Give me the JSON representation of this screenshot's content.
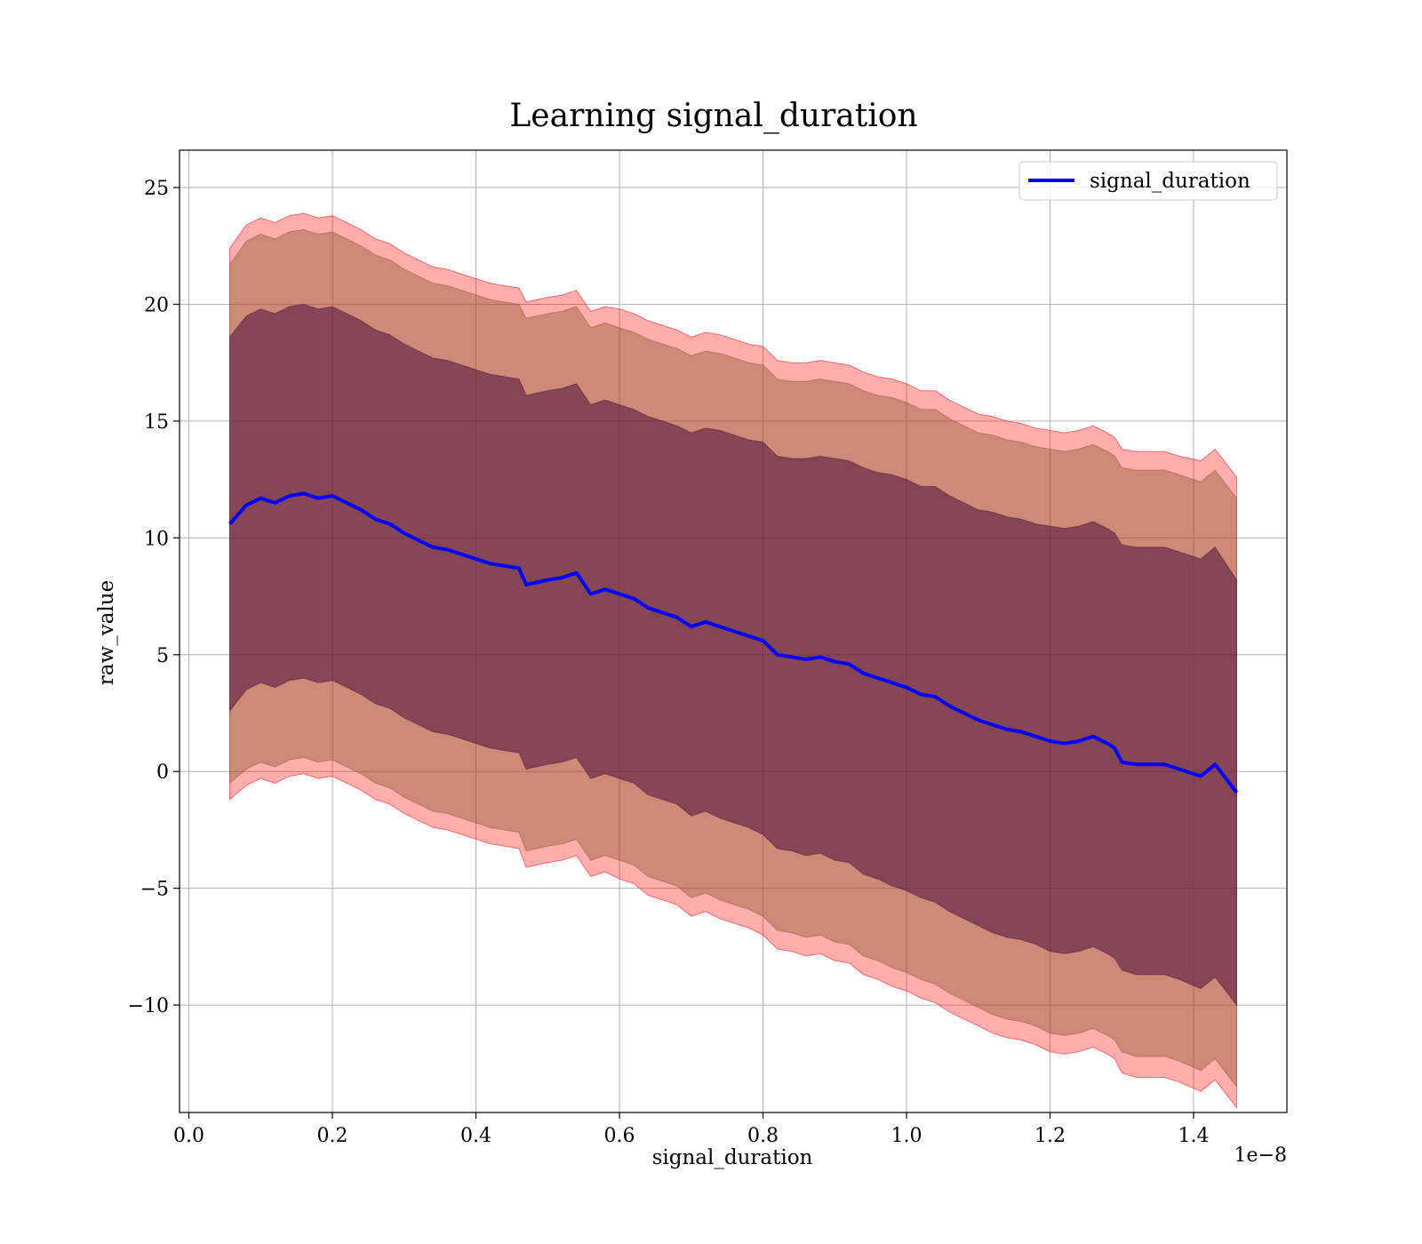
{
  "chart_data": {
    "type": "line",
    "title": "Learning signal_duration",
    "xlabel": "signal_duration",
    "ylabel": "raw_value",
    "x_offset_label": "1e−8",
    "xlim": [
      -0.013,
      1.53
    ],
    "ylim": [
      -14.6,
      26.6
    ],
    "xticks": [
      0.0,
      0.2,
      0.4,
      0.6,
      0.8,
      1.0,
      1.2,
      1.4
    ],
    "xtick_labels": [
      "0.0",
      "0.2",
      "0.4",
      "0.6",
      "0.8",
      "1.0",
      "1.2",
      "1.4"
    ],
    "yticks": [
      25,
      20,
      15,
      10,
      5,
      0,
      -5,
      -10
    ],
    "ytick_labels": [
      "25",
      "20",
      "15",
      "10",
      "5",
      "0",
      "−5",
      "−10"
    ],
    "grid": true,
    "legend_position": "upper right",
    "colors": {
      "line": "#0000ff",
      "outer_band": "#ff0000",
      "middle_band": "#8b5a2b",
      "inner_band": "#4b0f3a"
    },
    "series": [
      {
        "name": "signal_duration",
        "x": [
          0.057,
          0.08,
          0.1,
          0.12,
          0.14,
          0.16,
          0.18,
          0.2,
          0.22,
          0.24,
          0.26,
          0.28,
          0.3,
          0.32,
          0.34,
          0.36,
          0.38,
          0.4,
          0.42,
          0.44,
          0.46,
          0.47,
          0.5,
          0.52,
          0.54,
          0.56,
          0.58,
          0.6,
          0.62,
          0.64,
          0.66,
          0.68,
          0.7,
          0.72,
          0.74,
          0.76,
          0.78,
          0.8,
          0.82,
          0.84,
          0.86,
          0.88,
          0.9,
          0.92,
          0.94,
          0.96,
          0.98,
          1.0,
          1.02,
          1.04,
          1.06,
          1.08,
          1.1,
          1.12,
          1.14,
          1.16,
          1.18,
          1.2,
          1.22,
          1.24,
          1.26,
          1.28,
          1.29,
          1.3,
          1.32,
          1.34,
          1.36,
          1.38,
          1.41,
          1.43,
          1.46
        ],
        "y": [
          10.6,
          11.4,
          11.7,
          11.5,
          11.8,
          11.9,
          11.7,
          11.8,
          11.5,
          11.2,
          10.8,
          10.6,
          10.2,
          9.9,
          9.6,
          9.5,
          9.3,
          9.1,
          8.9,
          8.8,
          8.7,
          8.0,
          8.2,
          8.3,
          8.5,
          7.6,
          7.8,
          7.6,
          7.4,
          7.0,
          6.8,
          6.6,
          6.2,
          6.4,
          6.2,
          6.0,
          5.8,
          5.6,
          5.0,
          4.9,
          4.8,
          4.9,
          4.7,
          4.6,
          4.2,
          4.0,
          3.8,
          3.6,
          3.3,
          3.2,
          2.8,
          2.5,
          2.2,
          2.0,
          1.8,
          1.7,
          1.5,
          1.3,
          1.2,
          1.3,
          1.5,
          1.2,
          1.0,
          0.4,
          0.3,
          0.3,
          0.3,
          0.1,
          -0.2,
          0.3,
          -0.9
        ]
      }
    ],
    "bands": [
      {
        "lower": [
          -1.2,
          -0.6,
          -0.3,
          -0.5,
          -0.2,
          -0.1,
          -0.3,
          -0.2,
          -0.5,
          -0.8,
          -1.2,
          -1.4,
          -1.8,
          -2.1,
          -2.4,
          -2.5,
          -2.7,
          -2.9,
          -3.1,
          -3.2,
          -3.3,
          -4.1,
          -3.9,
          -3.8,
          -3.6,
          -4.5,
          -4.3,
          -4.6,
          -4.8,
          -5.3,
          -5.5,
          -5.7,
          -6.2,
          -6.0,
          -6.3,
          -6.5,
          -6.7,
          -7.0,
          -7.6,
          -7.7,
          -7.9,
          -7.8,
          -8.1,
          -8.2,
          -8.7,
          -8.9,
          -9.2,
          -9.4,
          -9.7,
          -9.9,
          -10.3,
          -10.6,
          -10.9,
          -11.2,
          -11.4,
          -11.5,
          -11.7,
          -12.0,
          -12.1,
          -12.0,
          -11.8,
          -12.1,
          -12.3,
          -12.9,
          -13.1,
          -13.1,
          -13.1,
          -13.3,
          -13.7,
          -13.2,
          -14.4
        ],
        "upper": [
          22.4,
          23.4,
          23.7,
          23.5,
          23.8,
          23.9,
          23.7,
          23.8,
          23.5,
          23.2,
          22.8,
          22.6,
          22.2,
          21.9,
          21.6,
          21.5,
          21.3,
          21.1,
          20.9,
          20.8,
          20.7,
          20.1,
          20.3,
          20.4,
          20.6,
          19.7,
          19.9,
          19.8,
          19.6,
          19.3,
          19.1,
          18.9,
          18.6,
          18.8,
          18.7,
          18.5,
          18.3,
          18.2,
          17.6,
          17.5,
          17.5,
          17.6,
          17.5,
          17.4,
          17.1,
          16.9,
          16.8,
          16.6,
          16.3,
          16.3,
          15.9,
          15.6,
          15.3,
          15.2,
          15.0,
          14.9,
          14.7,
          14.6,
          14.5,
          14.6,
          14.8,
          14.5,
          14.3,
          13.8,
          13.7,
          13.7,
          13.7,
          13.5,
          13.3,
          13.8,
          12.6
        ]
      },
      {
        "lower": [
          -0.5,
          0.1,
          0.4,
          0.2,
          0.5,
          0.6,
          0.4,
          0.5,
          0.2,
          -0.1,
          -0.5,
          -0.7,
          -1.1,
          -1.4,
          -1.7,
          -1.8,
          -2.0,
          -2.2,
          -2.4,
          -2.5,
          -2.6,
          -3.4,
          -3.2,
          -3.1,
          -2.9,
          -3.8,
          -3.6,
          -3.8,
          -4.0,
          -4.5,
          -4.7,
          -4.9,
          -5.4,
          -5.2,
          -5.5,
          -5.7,
          -5.9,
          -6.2,
          -6.8,
          -6.9,
          -7.1,
          -7.0,
          -7.3,
          -7.4,
          -7.9,
          -8.1,
          -8.4,
          -8.6,
          -8.9,
          -9.1,
          -9.5,
          -9.8,
          -10.1,
          -10.4,
          -10.6,
          -10.7,
          -10.9,
          -11.2,
          -11.3,
          -11.2,
          -11.0,
          -11.3,
          -11.5,
          -12.0,
          -12.2,
          -12.2,
          -12.2,
          -12.4,
          -12.8,
          -12.3,
          -13.5
        ],
        "upper": [
          21.7,
          22.7,
          23.0,
          22.8,
          23.1,
          23.2,
          23.0,
          23.1,
          22.8,
          22.5,
          22.1,
          21.9,
          21.5,
          21.2,
          20.9,
          20.8,
          20.6,
          20.4,
          20.2,
          20.1,
          20.0,
          19.4,
          19.6,
          19.7,
          19.9,
          19.0,
          19.2,
          19.0,
          18.8,
          18.5,
          18.3,
          18.1,
          17.8,
          18.0,
          17.9,
          17.7,
          17.5,
          17.4,
          16.8,
          16.7,
          16.7,
          16.8,
          16.7,
          16.6,
          16.3,
          16.1,
          16.0,
          15.8,
          15.5,
          15.5,
          15.1,
          14.8,
          14.5,
          14.4,
          14.2,
          14.1,
          13.9,
          13.8,
          13.7,
          13.8,
          14.0,
          13.7,
          13.5,
          13.0,
          12.9,
          12.9,
          12.9,
          12.7,
          12.4,
          12.9,
          11.7
        ]
      },
      {
        "lower": [
          2.6,
          3.5,
          3.8,
          3.6,
          3.9,
          4.0,
          3.8,
          3.9,
          3.6,
          3.3,
          2.9,
          2.7,
          2.3,
          2.0,
          1.7,
          1.6,
          1.4,
          1.2,
          1.0,
          0.9,
          0.8,
          0.1,
          0.3,
          0.4,
          0.6,
          -0.3,
          -0.1,
          -0.3,
          -0.5,
          -1.0,
          -1.2,
          -1.4,
          -1.9,
          -1.7,
          -2.0,
          -2.2,
          -2.4,
          -2.7,
          -3.3,
          -3.4,
          -3.6,
          -3.5,
          -3.8,
          -3.9,
          -4.4,
          -4.6,
          -4.9,
          -5.1,
          -5.4,
          -5.6,
          -6.0,
          -6.3,
          -6.6,
          -6.9,
          -7.1,
          -7.2,
          -7.4,
          -7.7,
          -7.8,
          -7.7,
          -7.5,
          -7.8,
          -8.0,
          -8.5,
          -8.7,
          -8.7,
          -8.7,
          -8.9,
          -9.3,
          -8.8,
          -10.0
        ],
        "upper": [
          18.6,
          19.5,
          19.8,
          19.6,
          19.9,
          20.0,
          19.8,
          19.9,
          19.6,
          19.3,
          18.9,
          18.7,
          18.3,
          18.0,
          17.7,
          17.6,
          17.4,
          17.2,
          17.0,
          16.9,
          16.8,
          16.1,
          16.3,
          16.4,
          16.6,
          15.7,
          15.9,
          15.7,
          15.5,
          15.2,
          15.0,
          14.8,
          14.5,
          14.7,
          14.6,
          14.4,
          14.2,
          14.1,
          13.5,
          13.4,
          13.4,
          13.5,
          13.4,
          13.3,
          13.0,
          12.8,
          12.7,
          12.5,
          12.2,
          12.2,
          11.8,
          11.5,
          11.2,
          11.1,
          10.9,
          10.8,
          10.6,
          10.5,
          10.4,
          10.5,
          10.7,
          10.4,
          10.2,
          9.7,
          9.6,
          9.6,
          9.6,
          9.4,
          9.1,
          9.6,
          8.2
        ]
      }
    ]
  }
}
